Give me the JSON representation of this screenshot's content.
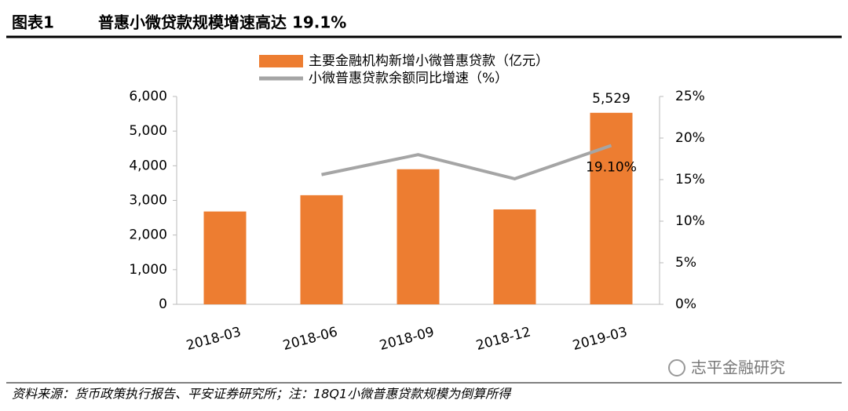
{
  "figure_label": "图表1",
  "source": "资料来源：货币政策执行报告、平安证券研究所；注：18Q1小微普惠贷款规模为倒算所得",
  "watermark": "志平金融研究",
  "chart_data": {
    "type": "bar_line",
    "title": "普惠小微贷款规模增速高达 19.1%",
    "categories": [
      "2018-03",
      "2018-06",
      "2018-09",
      "2018-12",
      "2019-03"
    ],
    "series": [
      {
        "name": "主要金融机构新增小微普惠贷款（亿元）",
        "type": "bar",
        "color": "#ED7D31",
        "values": [
          2680,
          3150,
          3900,
          2740,
          5529
        ],
        "value_labels": [
          null,
          null,
          null,
          null,
          "5,529"
        ]
      },
      {
        "name": "小微普惠贷款余额同比增速（%）",
        "type": "line",
        "axis": "y2",
        "color": "#A5A5A5",
        "values": [
          null,
          15.6,
          18.0,
          15.1,
          19.1
        ],
        "value_labels": [
          null,
          null,
          null,
          null,
          "19.10%"
        ]
      }
    ],
    "ylim": [
      0,
      6000
    ],
    "yticks": [
      0,
      {
        "value": 1000,
        "label": "1,000"
      },
      {
        "value": 2000,
        "label": "2,000"
      },
      {
        "value": 3000,
        "label": "3,000"
      },
      {
        "value": 4000,
        "label": "4,000"
      },
      {
        "value": 5000,
        "label": "5,000"
      },
      {
        "value": 6000,
        "label": "6,000"
      }
    ],
    "y2lim": [
      0,
      25
    ],
    "y2ticks": [
      {
        "value": 0,
        "label": "0%"
      },
      {
        "value": 5,
        "label": "5%"
      },
      {
        "value": 10,
        "label": "10%"
      },
      {
        "value": 15,
        "label": "15%"
      },
      {
        "value": 20,
        "label": "20%"
      },
      {
        "value": 25,
        "label": "25%"
      }
    ],
    "grid": false,
    "legend": "top"
  }
}
